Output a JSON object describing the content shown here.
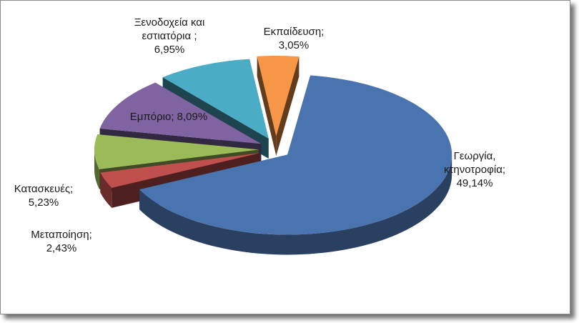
{
  "chart_data": {
    "type": "pie",
    "style": "3d-exploded",
    "title": "",
    "slices": [
      {
        "label_lines": [
          "Γεωργία,",
          "κτηνοτροφία;",
          "49,14%"
        ],
        "value": 49.14,
        "color": "#4a74b0"
      },
      {
        "label_lines": [
          "Μεταποίηση;",
          "2,43%"
        ],
        "value": 2.43,
        "color": "#c0504d"
      },
      {
        "label_lines": [
          "Κατασκευές;",
          "5,23%"
        ],
        "value": 5.23,
        "color": "#9bbb59"
      },
      {
        "label_lines": [
          "Εμπόριο; 8,09%"
        ],
        "value": 8.09,
        "color": "#8064a2"
      },
      {
        "label_lines": [
          "Ξενοδοχεία και",
          "εστιατόρια ;",
          "6,95%"
        ],
        "value": 6.95,
        "color": "#4bacc6"
      },
      {
        "label_lines": [
          "Εκπαίδευση;",
          "3,05%"
        ],
        "value": 3.05,
        "color": "#f79646"
      }
    ]
  }
}
